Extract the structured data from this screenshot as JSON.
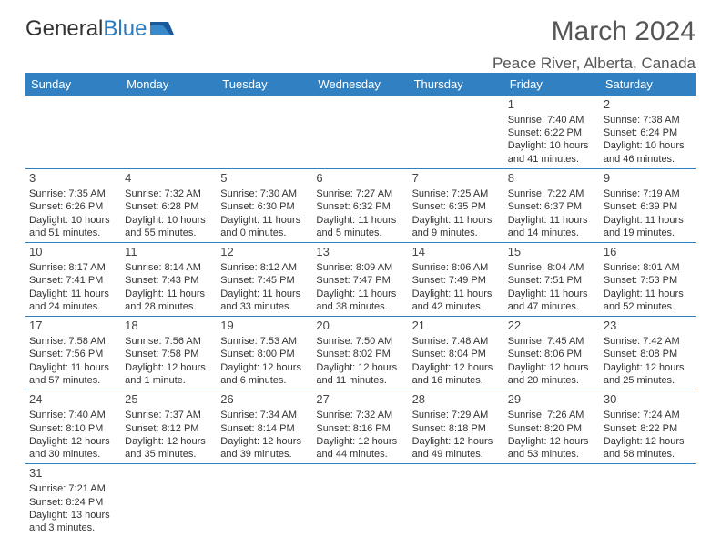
{
  "logo": {
    "text1": "General",
    "text2": "Blue"
  },
  "title": "March 2024",
  "location": "Peace River, Alberta, Canada",
  "columns": [
    "Sunday",
    "Monday",
    "Tuesday",
    "Wednesday",
    "Thursday",
    "Friday",
    "Saturday"
  ],
  "colors": {
    "header_bg": "#3080c2",
    "header_text": "#ffffff",
    "row_border": "#3080c2",
    "logo_blue": "#2b7bbf"
  },
  "weeks": [
    [
      null,
      null,
      null,
      null,
      null,
      {
        "n": "1",
        "sr": "Sunrise: 7:40 AM",
        "ss": "Sunset: 6:22 PM",
        "dl1": "Daylight: 10 hours",
        "dl2": "and 41 minutes."
      },
      {
        "n": "2",
        "sr": "Sunrise: 7:38 AM",
        "ss": "Sunset: 6:24 PM",
        "dl1": "Daylight: 10 hours",
        "dl2": "and 46 minutes."
      }
    ],
    [
      {
        "n": "3",
        "sr": "Sunrise: 7:35 AM",
        "ss": "Sunset: 6:26 PM",
        "dl1": "Daylight: 10 hours",
        "dl2": "and 51 minutes."
      },
      {
        "n": "4",
        "sr": "Sunrise: 7:32 AM",
        "ss": "Sunset: 6:28 PM",
        "dl1": "Daylight: 10 hours",
        "dl2": "and 55 minutes."
      },
      {
        "n": "5",
        "sr": "Sunrise: 7:30 AM",
        "ss": "Sunset: 6:30 PM",
        "dl1": "Daylight: 11 hours",
        "dl2": "and 0 minutes."
      },
      {
        "n": "6",
        "sr": "Sunrise: 7:27 AM",
        "ss": "Sunset: 6:32 PM",
        "dl1": "Daylight: 11 hours",
        "dl2": "and 5 minutes."
      },
      {
        "n": "7",
        "sr": "Sunrise: 7:25 AM",
        "ss": "Sunset: 6:35 PM",
        "dl1": "Daylight: 11 hours",
        "dl2": "and 9 minutes."
      },
      {
        "n": "8",
        "sr": "Sunrise: 7:22 AM",
        "ss": "Sunset: 6:37 PM",
        "dl1": "Daylight: 11 hours",
        "dl2": "and 14 minutes."
      },
      {
        "n": "9",
        "sr": "Sunrise: 7:19 AM",
        "ss": "Sunset: 6:39 PM",
        "dl1": "Daylight: 11 hours",
        "dl2": "and 19 minutes."
      }
    ],
    [
      {
        "n": "10",
        "sr": "Sunrise: 8:17 AM",
        "ss": "Sunset: 7:41 PM",
        "dl1": "Daylight: 11 hours",
        "dl2": "and 24 minutes."
      },
      {
        "n": "11",
        "sr": "Sunrise: 8:14 AM",
        "ss": "Sunset: 7:43 PM",
        "dl1": "Daylight: 11 hours",
        "dl2": "and 28 minutes."
      },
      {
        "n": "12",
        "sr": "Sunrise: 8:12 AM",
        "ss": "Sunset: 7:45 PM",
        "dl1": "Daylight: 11 hours",
        "dl2": "and 33 minutes."
      },
      {
        "n": "13",
        "sr": "Sunrise: 8:09 AM",
        "ss": "Sunset: 7:47 PM",
        "dl1": "Daylight: 11 hours",
        "dl2": "and 38 minutes."
      },
      {
        "n": "14",
        "sr": "Sunrise: 8:06 AM",
        "ss": "Sunset: 7:49 PM",
        "dl1": "Daylight: 11 hours",
        "dl2": "and 42 minutes."
      },
      {
        "n": "15",
        "sr": "Sunrise: 8:04 AM",
        "ss": "Sunset: 7:51 PM",
        "dl1": "Daylight: 11 hours",
        "dl2": "and 47 minutes."
      },
      {
        "n": "16",
        "sr": "Sunrise: 8:01 AM",
        "ss": "Sunset: 7:53 PM",
        "dl1": "Daylight: 11 hours",
        "dl2": "and 52 minutes."
      }
    ],
    [
      {
        "n": "17",
        "sr": "Sunrise: 7:58 AM",
        "ss": "Sunset: 7:56 PM",
        "dl1": "Daylight: 11 hours",
        "dl2": "and 57 minutes."
      },
      {
        "n": "18",
        "sr": "Sunrise: 7:56 AM",
        "ss": "Sunset: 7:58 PM",
        "dl1": "Daylight: 12 hours",
        "dl2": "and 1 minute."
      },
      {
        "n": "19",
        "sr": "Sunrise: 7:53 AM",
        "ss": "Sunset: 8:00 PM",
        "dl1": "Daylight: 12 hours",
        "dl2": "and 6 minutes."
      },
      {
        "n": "20",
        "sr": "Sunrise: 7:50 AM",
        "ss": "Sunset: 8:02 PM",
        "dl1": "Daylight: 12 hours",
        "dl2": "and 11 minutes."
      },
      {
        "n": "21",
        "sr": "Sunrise: 7:48 AM",
        "ss": "Sunset: 8:04 PM",
        "dl1": "Daylight: 12 hours",
        "dl2": "and 16 minutes."
      },
      {
        "n": "22",
        "sr": "Sunrise: 7:45 AM",
        "ss": "Sunset: 8:06 PM",
        "dl1": "Daylight: 12 hours",
        "dl2": "and 20 minutes."
      },
      {
        "n": "23",
        "sr": "Sunrise: 7:42 AM",
        "ss": "Sunset: 8:08 PM",
        "dl1": "Daylight: 12 hours",
        "dl2": "and 25 minutes."
      }
    ],
    [
      {
        "n": "24",
        "sr": "Sunrise: 7:40 AM",
        "ss": "Sunset: 8:10 PM",
        "dl1": "Daylight: 12 hours",
        "dl2": "and 30 minutes."
      },
      {
        "n": "25",
        "sr": "Sunrise: 7:37 AM",
        "ss": "Sunset: 8:12 PM",
        "dl1": "Daylight: 12 hours",
        "dl2": "and 35 minutes."
      },
      {
        "n": "26",
        "sr": "Sunrise: 7:34 AM",
        "ss": "Sunset: 8:14 PM",
        "dl1": "Daylight: 12 hours",
        "dl2": "and 39 minutes."
      },
      {
        "n": "27",
        "sr": "Sunrise: 7:32 AM",
        "ss": "Sunset: 8:16 PM",
        "dl1": "Daylight: 12 hours",
        "dl2": "and 44 minutes."
      },
      {
        "n": "28",
        "sr": "Sunrise: 7:29 AM",
        "ss": "Sunset: 8:18 PM",
        "dl1": "Daylight: 12 hours",
        "dl2": "and 49 minutes."
      },
      {
        "n": "29",
        "sr": "Sunrise: 7:26 AM",
        "ss": "Sunset: 8:20 PM",
        "dl1": "Daylight: 12 hours",
        "dl2": "and 53 minutes."
      },
      {
        "n": "30",
        "sr": "Sunrise: 7:24 AM",
        "ss": "Sunset: 8:22 PM",
        "dl1": "Daylight: 12 hours",
        "dl2": "and 58 minutes."
      }
    ],
    [
      {
        "n": "31",
        "sr": "Sunrise: 7:21 AM",
        "ss": "Sunset: 8:24 PM",
        "dl1": "Daylight: 13 hours",
        "dl2": "and 3 minutes."
      },
      null,
      null,
      null,
      null,
      null,
      null
    ]
  ]
}
